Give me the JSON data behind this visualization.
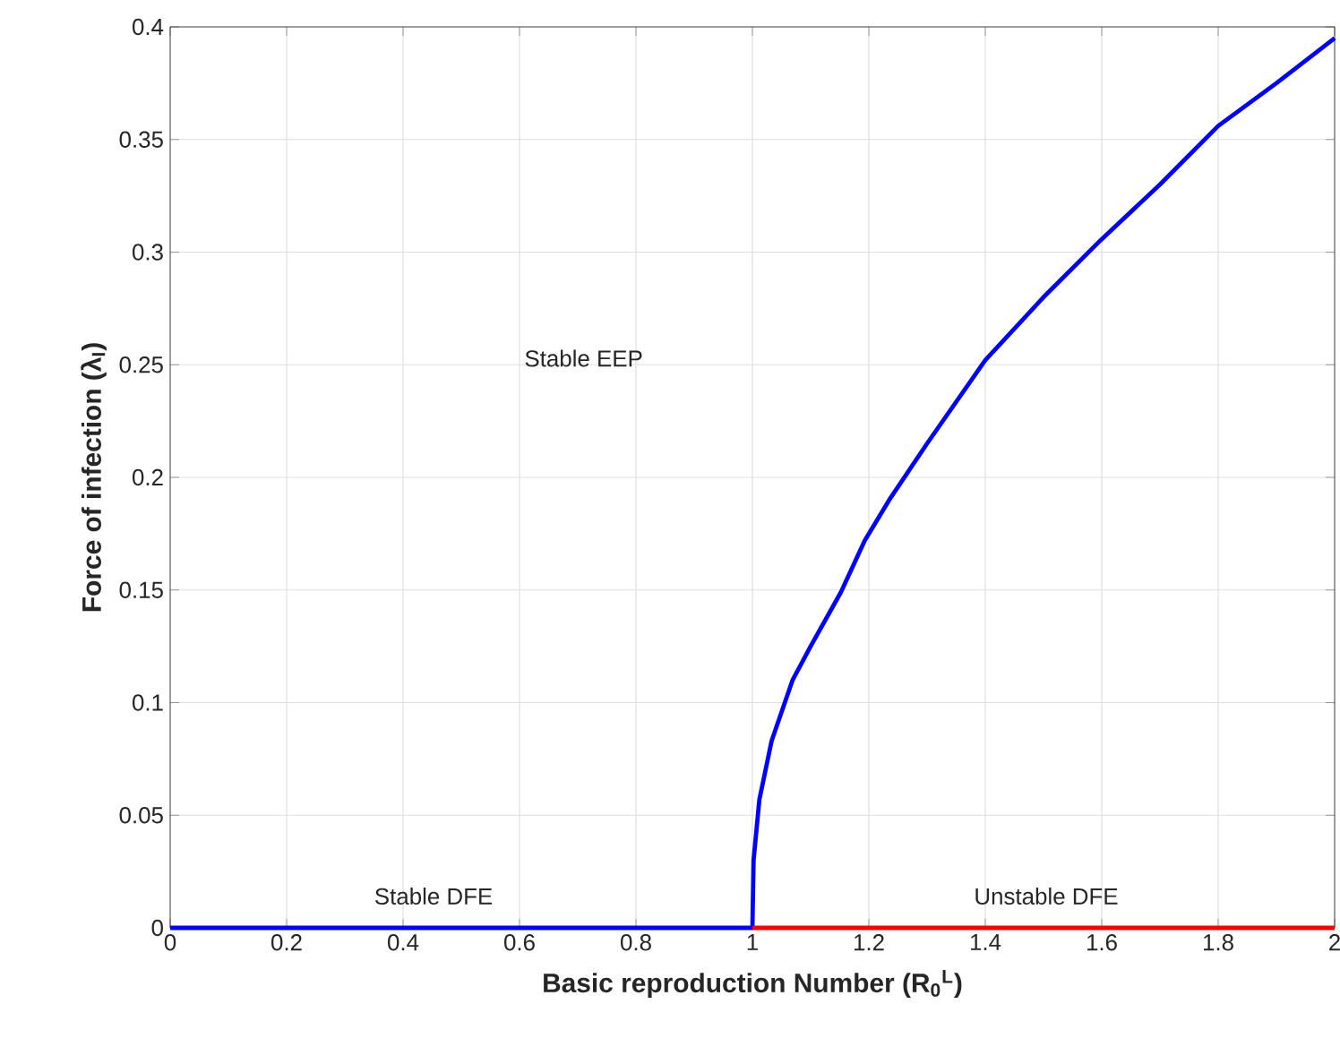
{
  "chart_data": {
    "type": "line",
    "xlabel": "Basic reproduction Number (R$_{0}$$^{L}$)",
    "ylabel": "Force of infection (λ$_{I}$)",
    "xlim": [
      0,
      2
    ],
    "ylim": [
      0,
      0.4
    ],
    "xticks": [
      0,
      0.2,
      0.4,
      0.6,
      0.8,
      1,
      1.2,
      1.4,
      1.6,
      1.8,
      2
    ],
    "yticks": [
      0,
      0.05,
      0.1,
      0.15,
      0.2,
      0.25,
      0.3,
      0.35,
      0.4
    ],
    "grid": true,
    "marker": "none",
    "line_style": "solid",
    "series": [
      {
        "color": "#0000ff",
        "x": [
          0,
          1,
          1.002,
          1.012,
          1.033,
          1.069,
          1.1,
          1.152,
          1.193,
          1.235,
          1.3,
          1.4,
          1.5,
          1.597,
          1.7,
          1.8,
          1.9,
          2
        ],
        "values": [
          0,
          0,
          0.03,
          0.057,
          0.083,
          0.11,
          0.125,
          0.149,
          0.172,
          0.19,
          0.215,
          0.252,
          0.28,
          0.305,
          0.33,
          0.356,
          0.375,
          0.395
        ]
      },
      {
        "color": "#ff0000",
        "x": [
          1,
          2
        ],
        "values": [
          0,
          0
        ]
      }
    ],
    "annotations": [
      "Stable EEP",
      "Stable DFE",
      "Unstable DFE"
    ]
  }
}
